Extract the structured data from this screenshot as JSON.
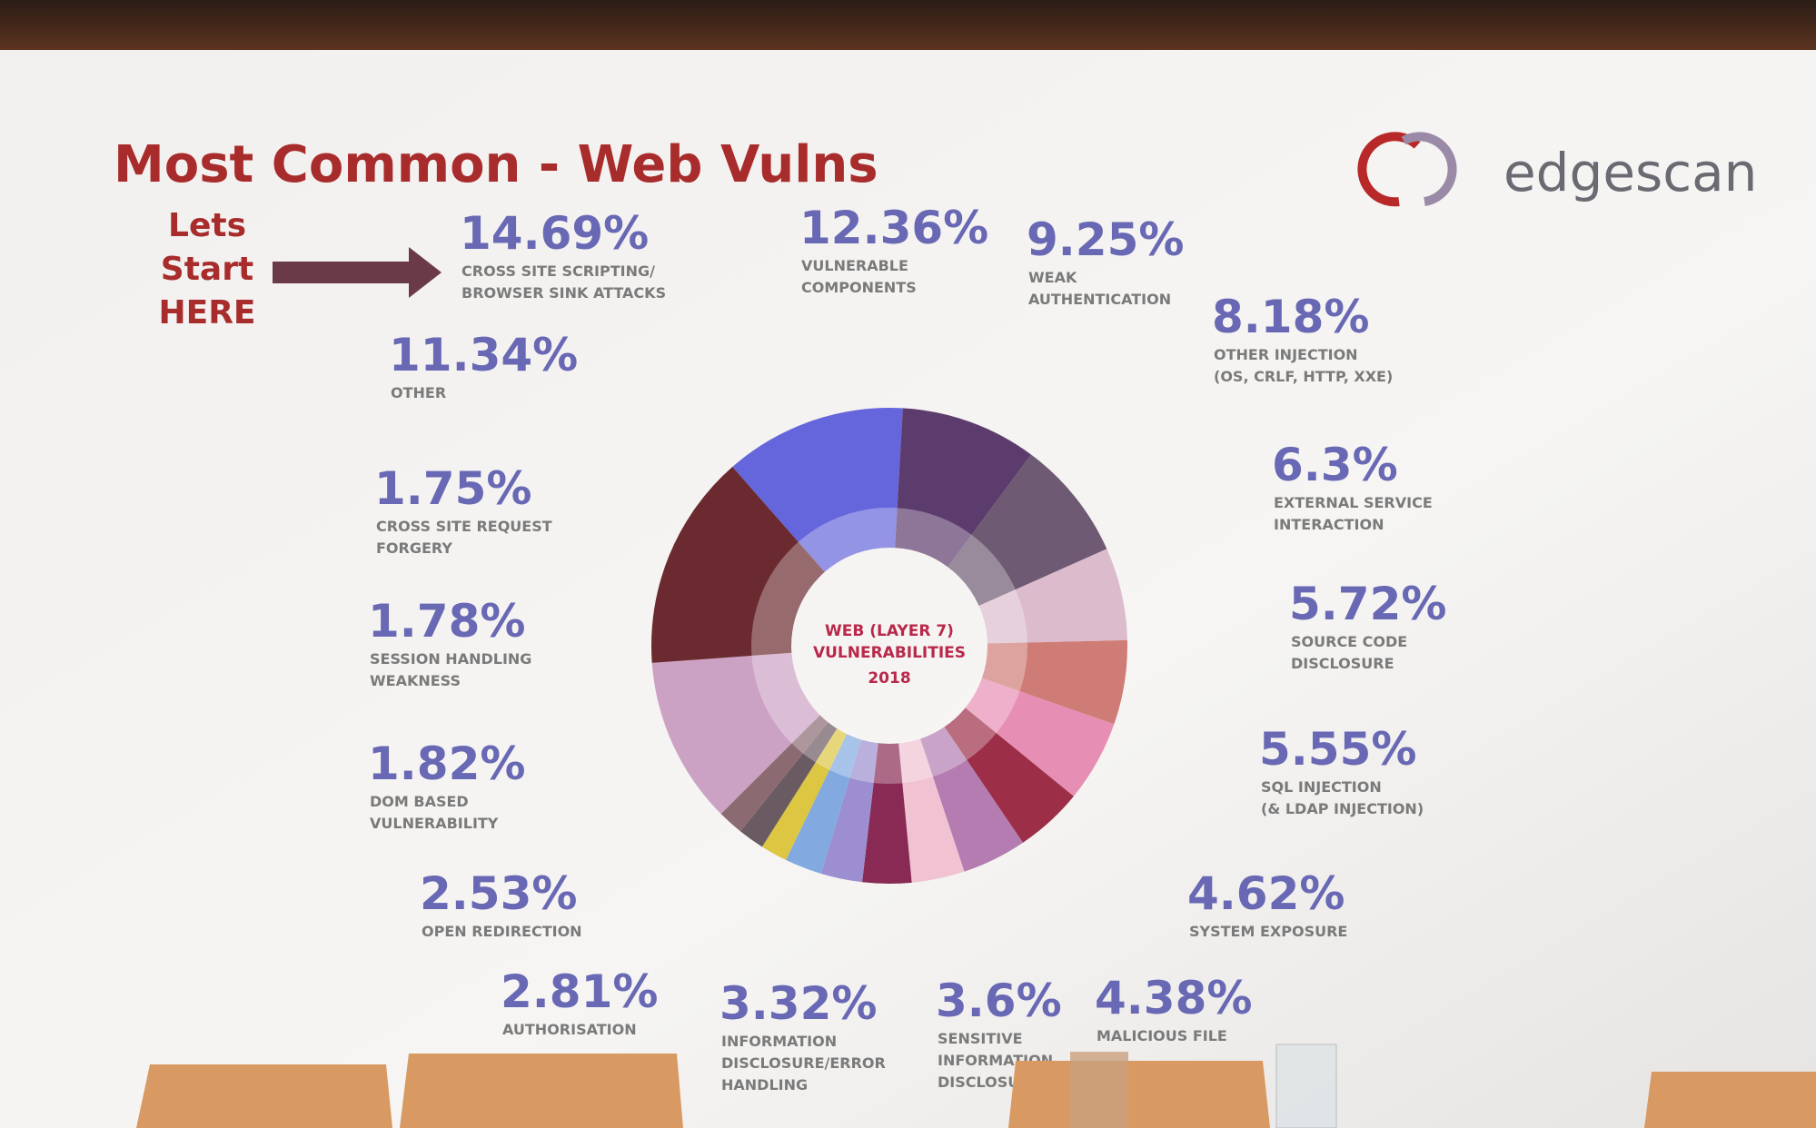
{
  "chart_data": {
    "type": "donut",
    "title": "Most Common - Web Vulns",
    "annotation": [
      "Lets",
      "Start",
      "HERE"
    ],
    "logo": "edgescan",
    "center_label": [
      "WEB (LAYER 7)",
      "VULNERABILITIES",
      "2018"
    ],
    "categories": [
      [
        "VULNERABLE",
        "COMPONENTS"
      ],
      [
        "WEAK",
        "AUTHENTICATION"
      ],
      [
        "OTHER INJECTION",
        "(OS, CRLF, HTTP, XXE)"
      ],
      [
        "EXTERNAL SERVICE",
        "INTERACTION"
      ],
      [
        "SOURCE CODE",
        "DISCLOSURE"
      ],
      [
        "SQL INJECTION",
        "(& LDAP INJECTION)"
      ],
      [
        "SYSTEM EXPOSURE"
      ],
      [
        "MALICIOUS FILE"
      ],
      [
        "SENSITIVE",
        "INFORMATION",
        "DISCLOSURE"
      ],
      [
        "INFORMATION",
        "DISCLOSURE/ERROR",
        "HANDLING"
      ],
      [
        "AUTHORISATION"
      ],
      [
        "OPEN REDIRECTION"
      ],
      [
        "DOM BASED",
        "VULNERABILITY"
      ],
      [
        "SESSION HANDLING",
        "WEAKNESS"
      ],
      [
        "CROSS SITE REQUEST",
        "FORGERY"
      ],
      [
        "OTHER"
      ],
      [
        "CROSS SITE SCRIPTING/",
        "BROWSER SINK ATTACKS"
      ]
    ],
    "values": [
      12.36,
      9.25,
      8.18,
      6.3,
      5.72,
      5.55,
      4.62,
      4.38,
      3.6,
      3.32,
      2.81,
      2.53,
      1.82,
      1.78,
      1.75,
      11.34,
      14.69
    ],
    "value_labels": [
      "12.36%",
      "9.25%",
      "8.18%",
      "6.3%",
      "5.72%",
      "5.55%",
      "4.62%",
      "4.38%",
      "3.6%",
      "3.32%",
      "2.81%",
      "2.53%",
      "1.82%",
      "1.78%",
      "1.75%",
      "11.34%",
      "14.69%"
    ],
    "colors": [
      "#6666dc",
      "#5c3c6c",
      "#6e5a72",
      "#dcbccc",
      "#cf7c76",
      "#e78eb4",
      "#9c2e48",
      "#b47cb0",
      "#f0c2d2",
      "#882a54",
      "#9c8ed0",
      "#82aae0",
      "#dcc642",
      "#6a5a62",
      "#8c6a72",
      "#cca2c4",
      "#6a2a30"
    ]
  }
}
